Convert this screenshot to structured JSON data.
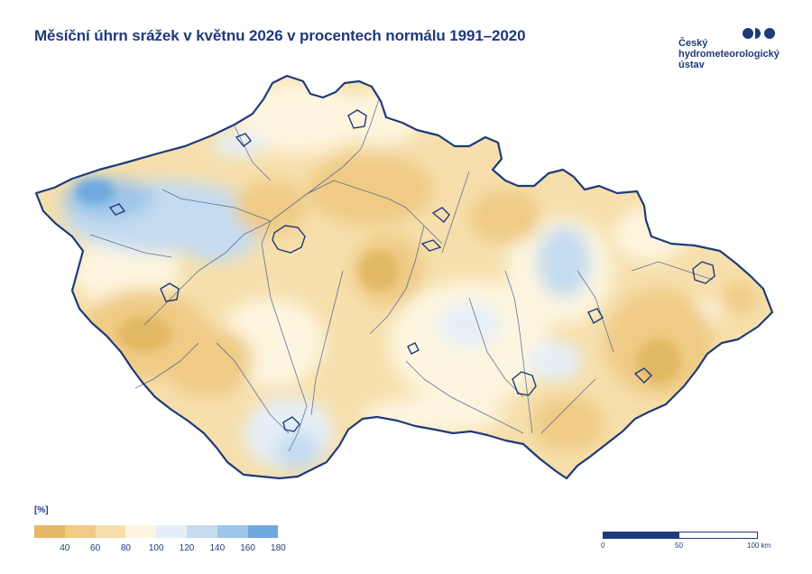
{
  "title": "Měsíční úhrn srážek v květnu 2026 v procentech normálu 1991–2020",
  "logo": {
    "lines": [
      "Český",
      "hydrometeorologický",
      "ústav"
    ],
    "icon": "chmi-logo-icon",
    "color": "#1f3a7a"
  },
  "legend": {
    "unit": "[%]",
    "colors": [
      "#e3b864",
      "#efcb85",
      "#f6dfac",
      "#fdf5df",
      "#e6eff8",
      "#c4dcf0",
      "#9cc5e8",
      "#70a9dd"
    ],
    "ticks": [
      "40",
      "60",
      "80",
      "100",
      "120",
      "140",
      "160",
      "180"
    ]
  },
  "scale": {
    "labels": [
      "0",
      "50",
      "100 km"
    ]
  },
  "colors": {
    "border": "#1f3a7a",
    "river": "#4a5e92"
  }
}
